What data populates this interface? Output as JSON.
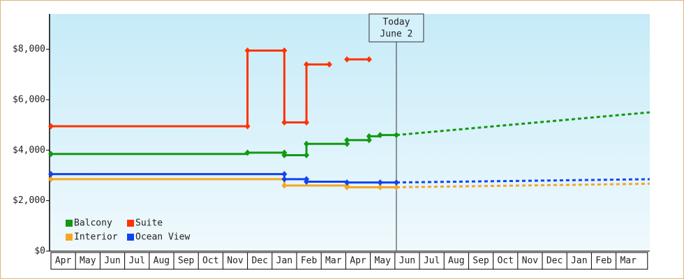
{
  "chart_data": {
    "type": "step-line",
    "categories": [
      "Apr",
      "May",
      "Jun",
      "Jul",
      "Aug",
      "Sep",
      "Oct",
      "Nov",
      "Dec",
      "Jan",
      "Feb",
      "Mar",
      "Apr",
      "May",
      "Jun",
      "Jul",
      "Aug",
      "Sep",
      "Oct",
      "Nov",
      "Dec",
      "Jan",
      "Feb",
      "Mar"
    ],
    "xlim": [
      -0.05,
      24.37
    ],
    "ylim": [
      0,
      9400
    ],
    "yticks": [
      {
        "value": 0,
        "label": "$0"
      },
      {
        "value": 2000,
        "label": "$2,000"
      },
      {
        "value": 4000,
        "label": "$4,000"
      },
      {
        "value": 6000,
        "label": "$6,000"
      },
      {
        "value": 8000,
        "label": "$8,000"
      }
    ],
    "today": {
      "x": 14.06,
      "label": [
        "Today",
        "June 2"
      ]
    },
    "legend": "bottom-left",
    "series": [
      {
        "name": "Balcony",
        "color": "#119911",
        "x": [
          0,
          8.0,
          9.5,
          9.5,
          10.4,
          10.4,
          12.05,
          12.05,
          12.95,
          12.95,
          13.4,
          14.06
        ],
        "values": [
          3850,
          3900,
          3900,
          3800,
          3800,
          4250,
          4250,
          4400,
          4400,
          4550,
          4600,
          4600
        ],
        "forecast": {
          "x": [
            14.06,
            24.37
          ],
          "values": [
            4600,
            5500
          ]
        }
      },
      {
        "name": "Suite",
        "color": "#ff3300",
        "x": [
          0,
          8.0,
          8.0,
          9.5,
          9.5,
          10.4,
          10.4,
          11.33,
          11.7,
          12.05,
          12.95
        ],
        "values": [
          4950,
          4950,
          7950,
          7950,
          5100,
          5100,
          7400,
          7400,
          null,
          7600,
          7600
        ]
      },
      {
        "name": "Interior",
        "color": "#f5a623",
        "x": [
          0,
          9.5,
          9.5,
          12.05,
          12.05,
          13.4,
          14.06
        ],
        "values": [
          2850,
          2850,
          2600,
          2600,
          2530,
          2530,
          2530
        ],
        "forecast": {
          "x": [
            14.06,
            24.37
          ],
          "values": [
            2530,
            2670
          ]
        }
      },
      {
        "name": "Ocean View",
        "color": "#1144ee",
        "x": [
          0,
          9.5,
          9.5,
          10.4,
          10.4,
          12.05,
          13.4,
          14.06
        ],
        "values": [
          3050,
          3050,
          2850,
          2850,
          2750,
          2720,
          2720,
          2720
        ],
        "forecast": {
          "x": [
            14.06,
            24.37
          ],
          "values": [
            2720,
            2850
          ]
        }
      }
    ]
  }
}
